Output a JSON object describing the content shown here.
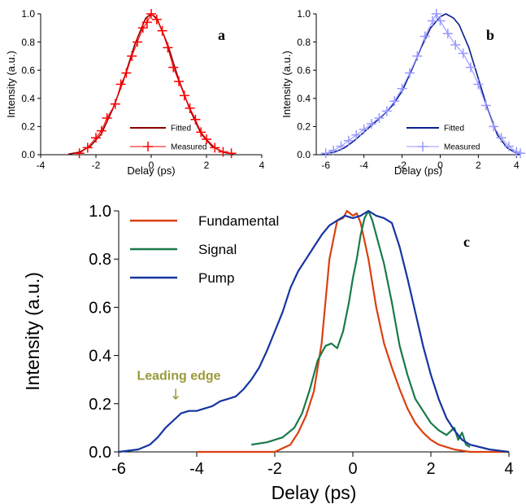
{
  "chart_data": [
    {
      "type": "scatter",
      "panel_label": "a",
      "xlabel": "Delay (ps)",
      "ylabel": "Intensity (a.u.)",
      "xlim": [
        -4,
        4
      ],
      "ylim": [
        0,
        1.0
      ],
      "xticks": [
        -4,
        -2,
        0,
        2,
        4
      ],
      "yticks": [
        0.0,
        0.2,
        0.4,
        0.6,
        0.8,
        1.0
      ],
      "legend_position": "bottom-right",
      "colors": {
        "fitted": "#8b0000",
        "measured": "#ff0000"
      },
      "series": [
        {
          "name": "Fitted",
          "style": "line",
          "color": "#8b0000",
          "x": [
            -3.0,
            -2.6,
            -2.2,
            -1.8,
            -1.4,
            -1.0,
            -0.6,
            -0.2,
            0.0,
            0.2,
            0.6,
            1.0,
            1.4,
            1.8,
            2.2,
            2.6,
            3.0
          ],
          "y": [
            0.004,
            0.018,
            0.06,
            0.15,
            0.32,
            0.53,
            0.78,
            0.97,
            1.0,
            0.97,
            0.78,
            0.53,
            0.32,
            0.15,
            0.06,
            0.018,
            0.004
          ]
        },
        {
          "name": "Measured",
          "style": "line-markers",
          "marker": "plus",
          "color": "#ff0000",
          "x": [
            -2.6,
            -2.3,
            -2.0,
            -1.8,
            -1.6,
            -1.3,
            -1.1,
            -0.9,
            -0.7,
            -0.5,
            -0.3,
            -0.15,
            0.0,
            0.2,
            0.4,
            0.6,
            0.8,
            1.0,
            1.2,
            1.4,
            1.6,
            1.8,
            2.0,
            2.3,
            2.6,
            2.9
          ],
          "y": [
            0.01,
            0.05,
            0.12,
            0.17,
            0.26,
            0.36,
            0.5,
            0.58,
            0.7,
            0.8,
            0.9,
            0.94,
            1.0,
            0.96,
            0.88,
            0.76,
            0.62,
            0.52,
            0.42,
            0.33,
            0.25,
            0.16,
            0.11,
            0.05,
            0.02,
            0.01
          ]
        }
      ]
    },
    {
      "type": "scatter",
      "panel_label": "b",
      "xlabel": "Delay (ps)",
      "ylabel": "Intensity (a.u.)",
      "xlim": [
        -6.5,
        4.2
      ],
      "ylim": [
        0,
        1.0
      ],
      "xticks": [
        -6,
        -4,
        -2,
        0,
        2,
        4
      ],
      "yticks": [
        0.0,
        0.2,
        0.4,
        0.6,
        0.8,
        1.0
      ],
      "legend_position": "bottom-right",
      "colors": {
        "fitted": "#0a1f8f",
        "measured": "#9999ff"
      },
      "series": [
        {
          "name": "Fitted",
          "style": "line",
          "color": "#0a1f8f",
          "x": [
            -6.2,
            -5.5,
            -5.0,
            -4.5,
            -4.0,
            -3.5,
            -3.0,
            -2.5,
            -2.0,
            -1.5,
            -1.0,
            -0.5,
            0.0,
            0.3,
            0.7,
            1.0,
            1.5,
            2.0,
            2.5,
            3.0,
            3.5,
            4.0,
            4.2
          ],
          "y": [
            0.0,
            0.02,
            0.05,
            0.1,
            0.16,
            0.22,
            0.28,
            0.35,
            0.45,
            0.6,
            0.76,
            0.9,
            0.98,
            1.0,
            0.97,
            0.92,
            0.76,
            0.54,
            0.32,
            0.14,
            0.05,
            0.01,
            0.0
          ]
        },
        {
          "name": "Measured",
          "style": "line-markers",
          "marker": "plus",
          "color": "#9999ff",
          "x": [
            -6.0,
            -5.6,
            -5.2,
            -4.8,
            -4.4,
            -4.0,
            -3.6,
            -3.2,
            -2.8,
            -2.4,
            -2.0,
            -1.6,
            -1.2,
            -0.8,
            -0.4,
            -0.2,
            0.0,
            0.4,
            0.8,
            1.2,
            1.6,
            2.0,
            2.4,
            2.8,
            3.2,
            3.6,
            4.0,
            4.2
          ],
          "y": [
            0.01,
            0.03,
            0.06,
            0.1,
            0.14,
            0.18,
            0.22,
            0.26,
            0.31,
            0.38,
            0.47,
            0.58,
            0.7,
            0.84,
            0.95,
            1.0,
            0.95,
            0.86,
            0.78,
            0.72,
            0.62,
            0.5,
            0.35,
            0.2,
            0.12,
            0.06,
            0.02,
            0.01
          ]
        }
      ]
    },
    {
      "type": "line",
      "panel_label": "c",
      "xlabel": "Delay (ps)",
      "ylabel": "Intensity (a.u.)",
      "xlim": [
        -6,
        4
      ],
      "ylim": [
        0,
        1.0
      ],
      "xticks": [
        -6,
        -4,
        -2,
        0,
        2,
        4
      ],
      "yticks": [
        0.0,
        0.2,
        0.4,
        0.6,
        0.8,
        1.0
      ],
      "legend_position": "top-left",
      "annotation": {
        "text": "Leading edge",
        "arrow": "↓",
        "x": -4.5,
        "y": 0.17,
        "color": "#9a9a3a"
      },
      "series": [
        {
          "name": "Fundamental",
          "color": "#d94010",
          "x": [
            -4.0,
            -2.0,
            -1.6,
            -1.4,
            -1.2,
            -1.0,
            -0.8,
            -0.6,
            -0.4,
            -0.25,
            -0.15,
            0.0,
            0.1,
            0.2,
            0.4,
            0.6,
            0.8,
            1.0,
            1.2,
            1.4,
            1.6,
            1.8,
            2.0,
            2.2,
            2.4,
            2.6,
            2.8,
            3.0,
            4.0
          ],
          "y": [
            0.0,
            0.0,
            0.03,
            0.08,
            0.15,
            0.25,
            0.45,
            0.8,
            0.96,
            0.97,
            1.0,
            0.98,
            0.99,
            0.95,
            0.8,
            0.6,
            0.45,
            0.35,
            0.26,
            0.18,
            0.12,
            0.08,
            0.05,
            0.03,
            0.02,
            0.01,
            0.005,
            0.0,
            0.0
          ]
        },
        {
          "name": "Signal",
          "color": "#1a7a4a",
          "x": [
            -2.6,
            -2.2,
            -1.8,
            -1.5,
            -1.3,
            -1.1,
            -0.9,
            -0.7,
            -0.55,
            -0.4,
            -0.25,
            -0.1,
            0.0,
            0.1,
            0.2,
            0.3,
            0.4,
            0.5,
            0.6,
            0.8,
            1.0,
            1.2,
            1.4,
            1.6,
            1.8,
            2.0,
            2.2,
            2.4,
            2.6,
            2.7,
            2.8,
            2.9,
            3.0
          ],
          "y": [
            0.03,
            0.04,
            0.06,
            0.1,
            0.16,
            0.26,
            0.38,
            0.44,
            0.45,
            0.43,
            0.5,
            0.62,
            0.72,
            0.8,
            0.9,
            0.97,
            1.0,
            0.96,
            0.9,
            0.78,
            0.62,
            0.44,
            0.32,
            0.22,
            0.17,
            0.12,
            0.09,
            0.07,
            0.1,
            0.05,
            0.08,
            0.03,
            0.02
          ]
        },
        {
          "name": "Pump",
          "color": "#1535a0",
          "x": [
            -6.0,
            -5.5,
            -5.2,
            -5.0,
            -4.8,
            -4.6,
            -4.4,
            -4.2,
            -4.0,
            -3.8,
            -3.6,
            -3.4,
            -3.2,
            -3.0,
            -2.8,
            -2.6,
            -2.4,
            -2.2,
            -2.0,
            -1.8,
            -1.6,
            -1.4,
            -1.2,
            -1.0,
            -0.8,
            -0.6,
            -0.4,
            -0.2,
            0.0,
            0.2,
            0.4,
            0.6,
            0.8,
            1.0,
            1.2,
            1.4,
            1.6,
            1.8,
            2.0,
            2.2,
            2.4,
            2.6,
            2.8,
            3.0,
            3.5,
            4.0
          ],
          "y": [
            0.0,
            0.01,
            0.03,
            0.06,
            0.1,
            0.13,
            0.16,
            0.17,
            0.17,
            0.18,
            0.19,
            0.21,
            0.22,
            0.23,
            0.26,
            0.3,
            0.35,
            0.42,
            0.5,
            0.58,
            0.68,
            0.75,
            0.8,
            0.85,
            0.9,
            0.94,
            0.96,
            0.98,
            0.97,
            0.98,
            1.0,
            0.98,
            0.97,
            0.95,
            0.85,
            0.72,
            0.58,
            0.44,
            0.32,
            0.22,
            0.14,
            0.09,
            0.05,
            0.03,
            0.01,
            0.0
          ]
        }
      ]
    }
  ]
}
